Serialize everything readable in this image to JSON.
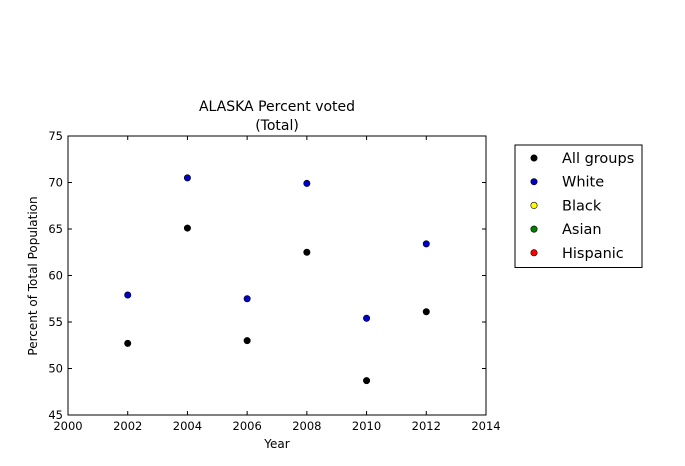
{
  "chart_data": {
    "type": "scatter",
    "title": "ALASKA Percent voted",
    "subtitle": "(Total)",
    "xlabel": "Year",
    "ylabel": "Percent of Total Population",
    "xlim": [
      2000,
      2014
    ],
    "ylim": [
      45,
      75
    ],
    "xticks": [
      2000,
      2002,
      2004,
      2006,
      2008,
      2010,
      2012,
      2014
    ],
    "yticks": [
      45,
      50,
      55,
      60,
      65,
      70,
      75
    ],
    "grid": false,
    "legend_position": "outside-right",
    "series": [
      {
        "name": "All groups",
        "color": "#000000",
        "x": [
          2002,
          2004,
          2006,
          2008,
          2010,
          2012
        ],
        "y": [
          52.7,
          65.1,
          53.0,
          62.5,
          48.7,
          56.1
        ]
      },
      {
        "name": "White",
        "color": "#0000cc",
        "x": [
          2002,
          2004,
          2006,
          2008,
          2010,
          2012
        ],
        "y": [
          57.9,
          70.5,
          57.5,
          69.9,
          55.4,
          63.4
        ]
      },
      {
        "name": "Black",
        "color": "#ffff00",
        "x": [],
        "y": []
      },
      {
        "name": "Asian",
        "color": "#008000",
        "x": [],
        "y": []
      },
      {
        "name": "Hispanic",
        "color": "#ff0000",
        "x": [],
        "y": []
      }
    ]
  }
}
